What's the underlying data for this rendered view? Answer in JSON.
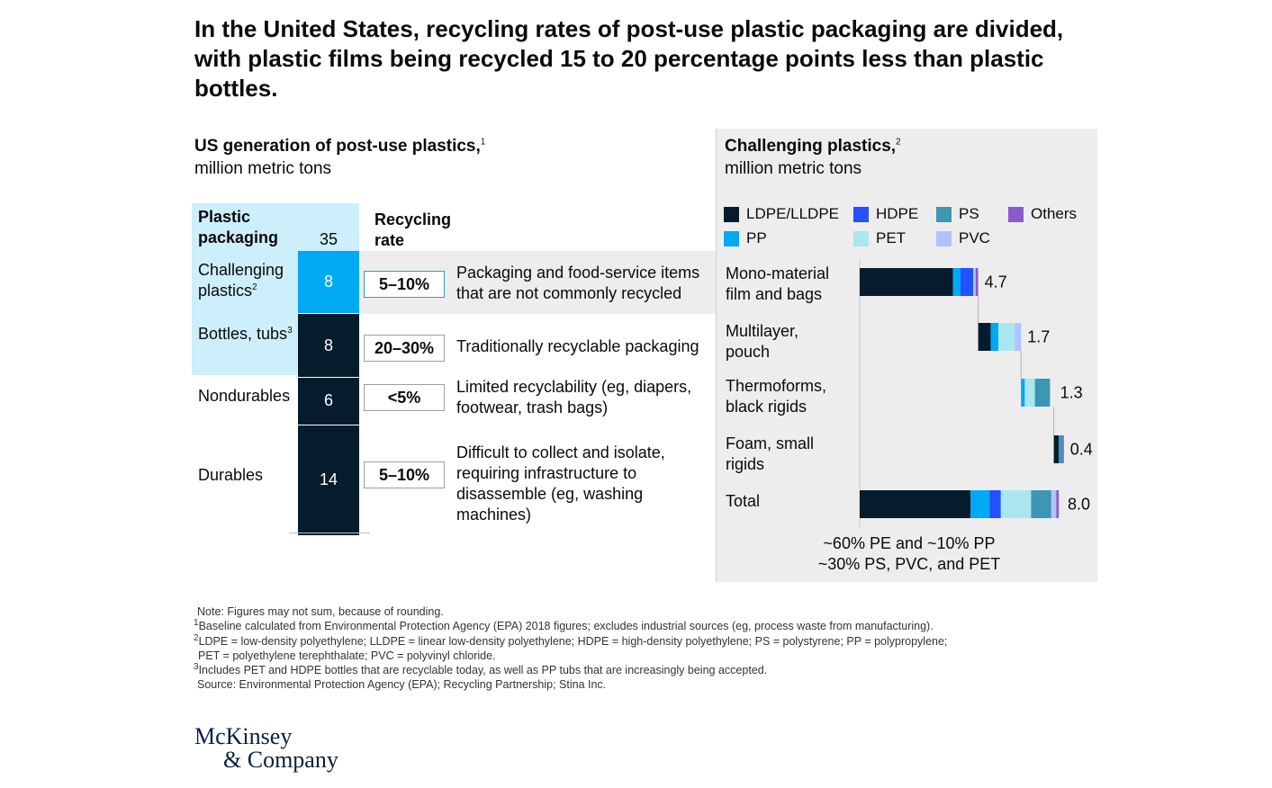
{
  "title": "In the United States, recycling rates of post-use plastic packaging are divided, with plastic films being recycled 15 to 20 percentage points less than plastic bottles.",
  "left": {
    "heading": "US generation of post-use plastics,",
    "heading_sup": "1",
    "unit": "million metric tons",
    "packaging_header": "Plastic packaging",
    "packaging_total": "35",
    "rate_header": "Recycling rate"
  },
  "right": {
    "heading": "Challenging plastics,",
    "heading_sup": "2",
    "unit": "million metric tons",
    "composition_line1": "~60% PE and ~10% PP",
    "composition_line2": "~30% PS, PVC, and PET"
  },
  "colors": {
    "navy": "#051c2c",
    "cyan": "#00a9f4",
    "light_blue_bg": "#cdeefb",
    "gray_bg": "#ededed",
    "LDPE/LLDPE": "#051c2c",
    "HDPE": "#2251ff",
    "PS": "#3c96b4",
    "Others": "#8c5ac8",
    "PP": "#00a9f4",
    "PET": "#aae6f0",
    "PVC": "#afc3ff"
  },
  "chart_data": [
    {
      "type": "bar",
      "title": "US generation of post-use plastics",
      "unit": "million metric tons",
      "categories": [
        "Challenging plastics",
        "Bottles, tubs",
        "Nondurables",
        "Durables"
      ],
      "values": [
        8,
        8,
        6,
        14
      ],
      "label_sups": [
        "2",
        "3",
        "",
        ""
      ],
      "recycling_rates": [
        "5–10%",
        "20–30%",
        "<5%",
        "5–10%"
      ],
      "descriptions": [
        "Packaging and food-service items that are not commonly recycled",
        "Traditionally recyclable packaging",
        "Limited recyclability (eg, diapers, footwear, trash bags)",
        "Difficult to collect and isolate, requiring infrastructure to disassemble (eg, washing machines)"
      ],
      "group_label": "Plastic packaging",
      "group_total": 35
    },
    {
      "type": "bar",
      "title": "Challenging plastics",
      "unit": "million metric tons",
      "categories": [
        "Mono-material film and bags",
        "Multilayer, pouch",
        "Thermoforms, black rigids",
        "Foam, small rigids",
        "Total"
      ],
      "totals": [
        4.7,
        1.7,
        1.3,
        0.4,
        8.0
      ],
      "total_labels": [
        "4.7",
        "1.7",
        "1.3",
        "0.4",
        "8.0"
      ],
      "legend": [
        "LDPE/LLDPE",
        "HDPE",
        "PS",
        "Others",
        "PP",
        "PET",
        "PVC"
      ],
      "stack_order": [
        "LDPE/LLDPE",
        "PP",
        "HDPE",
        "PET",
        "PS",
        "PVC",
        "Others"
      ],
      "series": [
        {
          "name": "LDPE/LLDPE",
          "values": [
            3.7,
            0.5,
            0.0,
            0.2,
            4.4
          ]
        },
        {
          "name": "PP",
          "values": [
            0.3,
            0.3,
            0.15,
            0.0,
            0.75
          ]
        },
        {
          "name": "HDPE",
          "values": [
            0.5,
            0.0,
            0.0,
            0.0,
            0.45
          ]
        },
        {
          "name": "PET",
          "values": [
            0.0,
            0.65,
            0.4,
            0.0,
            1.2
          ]
        },
        {
          "name": "PS",
          "values": [
            0.0,
            0.0,
            0.6,
            0.15,
            0.8
          ]
        },
        {
          "name": "PVC",
          "values": [
            0.1,
            0.25,
            0.0,
            0.0,
            0.2
          ]
        },
        {
          "name": "Others",
          "values": [
            0.1,
            0.0,
            0.0,
            0.05,
            0.1
          ]
        }
      ]
    }
  ],
  "notes": {
    "note": "Note: Figures may not sum, because of rounding.",
    "fn1": "Baseline calculated from Environmental Protection Agency (EPA) 2018 figures; excludes industrial sources (eg, process waste from manufacturing).",
    "fn2a": "LDPE = low-density polyethylene; LLDPE = linear low-density polyethylene; HDPE = high-density polyethylene; PS = polystyrene; PP = polypropylene;",
    "fn2b": "PET = polyethylene terephthalate; PVC = polyvinyl chloride.",
    "fn3": "Includes PET and HDPE bottles that are recyclable today, as well as PP tubs that are increasingly being accepted.",
    "source": "Source: Environmental Protection Agency (EPA); Recycling Partnership; Stina Inc."
  },
  "logo": {
    "line1": "McKinsey",
    "line2": "& Company"
  }
}
